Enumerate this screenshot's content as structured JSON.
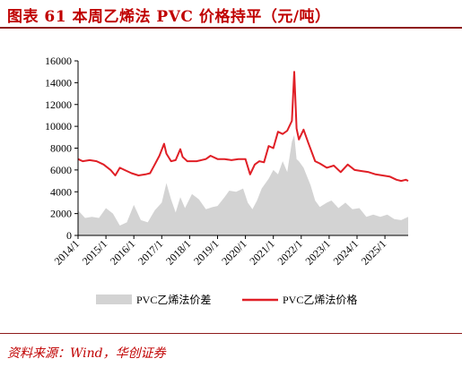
{
  "header": {
    "title": "图表 61    本周乙烯法 PVC 价格持平（元/吨）"
  },
  "footer": {
    "source": "资料来源：Wind，华创证券"
  },
  "chart_data": {
    "type": "area",
    "title": "图表 61    本周乙烯法 PVC 价格持平（元/吨）",
    "xlabel": "",
    "ylabel": "",
    "ylim": [
      0,
      16000
    ],
    "xlim": [
      "2014-01",
      "2025-11"
    ],
    "yticks": [
      "0",
      "2000",
      "4000",
      "6000",
      "8000",
      "10000",
      "12000",
      "14000",
      "16000"
    ],
    "xticks": [
      "2014/1",
      "2015/1",
      "2016/1",
      "2017/1",
      "2018/1",
      "2019/1",
      "2020/1",
      "2021/1",
      "2022/1",
      "2023/1",
      "2024/1",
      "2025/1"
    ],
    "grid": false,
    "legend_position": "bottom",
    "series": [
      {
        "name": "PVC乙烯法价差",
        "type": "area",
        "color": "#d3d3d3",
        "points": [
          [
            "2014-01",
            2300
          ],
          [
            "2014-04",
            1600
          ],
          [
            "2014-07",
            1700
          ],
          [
            "2014-10",
            1600
          ],
          [
            "2015-01",
            2500
          ],
          [
            "2015-04",
            2000
          ],
          [
            "2015-07",
            900
          ],
          [
            "2015-10",
            1200
          ],
          [
            "2016-01",
            2800
          ],
          [
            "2016-04",
            1400
          ],
          [
            "2016-07",
            1200
          ],
          [
            "2016-10",
            2300
          ],
          [
            "2017-01",
            3000
          ],
          [
            "2017-03",
            4800
          ],
          [
            "2017-05",
            3300
          ],
          [
            "2017-07",
            2100
          ],
          [
            "2017-09",
            3500
          ],
          [
            "2017-11",
            2500
          ],
          [
            "2018-02",
            3800
          ],
          [
            "2018-05",
            3300
          ],
          [
            "2018-08",
            2400
          ],
          [
            "2018-11",
            2600
          ],
          [
            "2019-01",
            2700
          ],
          [
            "2019-04",
            3500
          ],
          [
            "2019-06",
            4100
          ],
          [
            "2019-09",
            4000
          ],
          [
            "2019-12",
            4300
          ],
          [
            "2020-02",
            3000
          ],
          [
            "2020-04",
            2400
          ],
          [
            "2020-06",
            3200
          ],
          [
            "2020-08",
            4300
          ],
          [
            "2020-11",
            5200
          ],
          [
            "2021-01",
            6000
          ],
          [
            "2021-03",
            5600
          ],
          [
            "2021-05",
            6800
          ],
          [
            "2021-07",
            5800
          ],
          [
            "2021-09",
            8600
          ],
          [
            "2021-10",
            9200
          ],
          [
            "2021-11",
            7000
          ],
          [
            "2021-12",
            6800
          ],
          [
            "2022-02",
            6200
          ],
          [
            "2022-05",
            4600
          ],
          [
            "2022-07",
            3200
          ],
          [
            "2022-09",
            2600
          ],
          [
            "2022-12",
            3000
          ],
          [
            "2023-02",
            3200
          ],
          [
            "2023-05",
            2500
          ],
          [
            "2023-08",
            3000
          ],
          [
            "2023-11",
            2400
          ],
          [
            "2024-02",
            2500
          ],
          [
            "2024-05",
            1700
          ],
          [
            "2024-08",
            1900
          ],
          [
            "2024-11",
            1700
          ],
          [
            "2025-02",
            1900
          ],
          [
            "2025-05",
            1500
          ],
          [
            "2025-08",
            1400
          ],
          [
            "2025-11",
            1700
          ]
        ]
      },
      {
        "name": "PVC乙烯法价格",
        "type": "line",
        "color": "#e01f26",
        "points": [
          [
            "2014-01",
            7000
          ],
          [
            "2014-03",
            6800
          ],
          [
            "2014-06",
            6900
          ],
          [
            "2014-09",
            6800
          ],
          [
            "2014-12",
            6500
          ],
          [
            "2015-03",
            6000
          ],
          [
            "2015-05",
            5500
          ],
          [
            "2015-07",
            6200
          ],
          [
            "2015-09",
            6000
          ],
          [
            "2015-12",
            5700
          ],
          [
            "2016-03",
            5500
          ],
          [
            "2016-06",
            5600
          ],
          [
            "2016-08",
            5700
          ],
          [
            "2016-10",
            6500
          ],
          [
            "2016-12",
            7300
          ],
          [
            "2017-02",
            8400
          ],
          [
            "2017-03",
            7500
          ],
          [
            "2017-05",
            6800
          ],
          [
            "2017-07",
            6900
          ],
          [
            "2017-09",
            7900
          ],
          [
            "2017-10",
            7200
          ],
          [
            "2017-12",
            6800
          ],
          [
            "2018-04",
            6800
          ],
          [
            "2018-08",
            7000
          ],
          [
            "2018-10",
            7300
          ],
          [
            "2019-01",
            7000
          ],
          [
            "2019-04",
            7000
          ],
          [
            "2019-07",
            6900
          ],
          [
            "2019-10",
            7000
          ],
          [
            "2020-01",
            7000
          ],
          [
            "2020-03",
            5600
          ],
          [
            "2020-05",
            6500
          ],
          [
            "2020-07",
            6800
          ],
          [
            "2020-09",
            6700
          ],
          [
            "2020-11",
            8200
          ],
          [
            "2021-01",
            8000
          ],
          [
            "2021-03",
            9500
          ],
          [
            "2021-05",
            9300
          ],
          [
            "2021-07",
            9600
          ],
          [
            "2021-09",
            10500
          ],
          [
            "2021-10",
            15000
          ],
          [
            "2021-11",
            9800
          ],
          [
            "2021-12",
            8800
          ],
          [
            "2022-02",
            9700
          ],
          [
            "2022-04",
            8500
          ],
          [
            "2022-07",
            6800
          ],
          [
            "2022-09",
            6600
          ],
          [
            "2022-12",
            6200
          ],
          [
            "2023-03",
            6400
          ],
          [
            "2023-06",
            5800
          ],
          [
            "2023-09",
            6500
          ],
          [
            "2023-12",
            6000
          ],
          [
            "2024-03",
            5900
          ],
          [
            "2024-06",
            5800
          ],
          [
            "2024-09",
            5600
          ],
          [
            "2024-12",
            5500
          ],
          [
            "2025-03",
            5400
          ],
          [
            "2025-06",
            5100
          ],
          [
            "2025-08",
            5000
          ],
          [
            "2025-10",
            5100
          ],
          [
            "2025-11",
            5000
          ]
        ]
      }
    ]
  }
}
